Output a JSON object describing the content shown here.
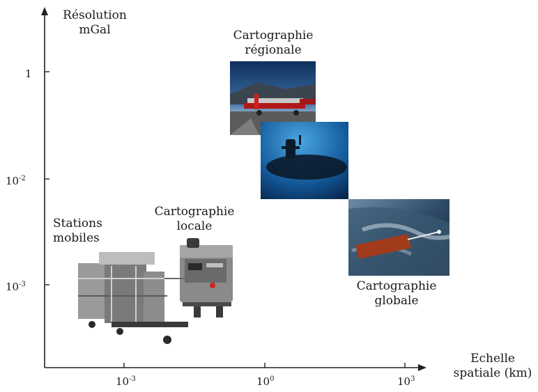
{
  "yaxis": {
    "title_line1": "Résolution",
    "title_line2": "mGal",
    "ticks": [
      {
        "base": "1",
        "exp": ""
      },
      {
        "base": "10",
        "exp": "-2"
      },
      {
        "base": "10",
        "exp": "-3"
      }
    ]
  },
  "xaxis": {
    "title_line1": "Echelle",
    "title_line2": "spatiale (km)",
    "ticks": [
      {
        "base": "10",
        "exp": "-3"
      },
      {
        "base": "10",
        "exp": "0"
      },
      {
        "base": "10",
        "exp": "3"
      }
    ]
  },
  "regions": {
    "regional": {
      "line1": "Cartographie",
      "line2": "régionale"
    },
    "local": {
      "line1": "Cartographie",
      "line2": "locale"
    },
    "mobile": {
      "line1": "Stations",
      "line2": "mobiles"
    },
    "global": {
      "line1": "Cartographie",
      "line2": "globale"
    }
  },
  "colors": {
    "axis": "#222222",
    "airplane_sky": "#1d4a78",
    "submarine_water": "#1b5f9c",
    "satellite_space": "#2a3f55"
  }
}
